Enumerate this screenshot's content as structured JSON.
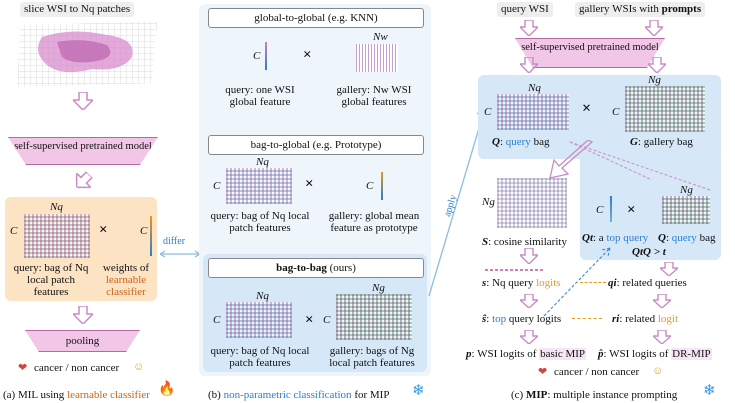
{
  "panel_a": {
    "slice_label": "slice WSI to Nq patches",
    "pretrained": "self-supervised pretrained model",
    "nq": "Nq",
    "c": "C",
    "query_bag": "query: bag of Nq local patch features",
    "weights_prefix": "weights of",
    "weights_highlight": "learnable classifier",
    "pooling": "pooling",
    "cancer": "cancer / non cancer",
    "caption_prefix": "(a) MIL using",
    "caption_highlight": "learnable classifier"
  },
  "panel_b": {
    "differ": "differ",
    "apply": "apply",
    "g2g_title": "global-to-global (e.g. KNN)",
    "g2g_c": "C",
    "g2g_nw": "Nw",
    "g2g_query": "query: one WSI global feature",
    "g2g_gallery": "gallery: Nw WSI global features",
    "b2g_title": "bag-to-global (e.g. Prototype)",
    "b2g_nq": "Nq",
    "b2g_c1": "C",
    "b2g_c2": "C",
    "b2g_query": "query: bag of Nq local patch features",
    "b2g_gallery": "gallery: global mean feature as prototype",
    "b2b_title": "bag-to-bag",
    "b2b_ours": "(ours)",
    "b2b_nq": "Nq",
    "b2b_ng": "Ng",
    "b2b_c1": "C",
    "b2b_c2": "C",
    "b2b_query": "query: bag of Nq local patch features",
    "b2b_gallery": "gallery: bags of Ng local patch features",
    "caption_highlight": "non-parametric classification",
    "caption_suffix": "for MIP"
  },
  "panel_c": {
    "query_wsi": "query WSI",
    "gallery_wsi_prefix": "gallery WSIs with",
    "gallery_wsi_bold": "prompts",
    "pretrained": "self-supervised pretrained model",
    "nq": "Nq",
    "ng": "Ng",
    "c1": "C",
    "c2": "C",
    "q_label": "Q",
    "q_query": "query",
    "q_bag": "bag",
    "g_label": "G",
    "g_bag": ": gallery bag",
    "ng2": "Ng",
    "s_label": "S",
    "s_text": ": cosine similarity",
    "qt_label": "Qt",
    "qt_text": ": a",
    "qt_top": "top",
    "qt_query": "query",
    "q_label2": "Q",
    "q_query2": "query",
    "q_bag2": "bag",
    "qtq": "QtQ > t",
    "s_small": "s",
    "s_small_text": ": Nq query",
    "s_small_logits": "logits",
    "qi_label": "qi",
    "qi_text": ": related queries",
    "shat_label": "ŝ",
    "shat_text": ":",
    "shat_top": "top",
    "shat_rest": "query logits",
    "ri_label": "ri",
    "ri_text": ": related",
    "ri_logit": "logit",
    "p_label": "p",
    "p_text": ": WSI logits of",
    "p_hl": "basic MIP",
    "phat_label": "p̂",
    "phat_text": ": WSI logits of",
    "phat_hl": "DR-MIP",
    "cancer": "cancer / non cancer",
    "caption_prefix": "(c)",
    "caption_bold": "MIP",
    "caption_suffix": ": multiple instance prompting"
  },
  "caption_b_prefix": "(b)",
  "icons": {
    "snowflake": "snowflake-icon",
    "flame": "flame-icon",
    "times": "×",
    "heart": "heart-icon",
    "smiley": "smiley-icon"
  },
  "colors": {
    "pink": "#f2c6e6",
    "blue_panel": "#d6e8f7",
    "orange_panel": "#fbe3c3",
    "query_blue": "#2a7fd1",
    "logit_orange": "#e59a1a",
    "arrow_pink": "#c98bc3"
  }
}
